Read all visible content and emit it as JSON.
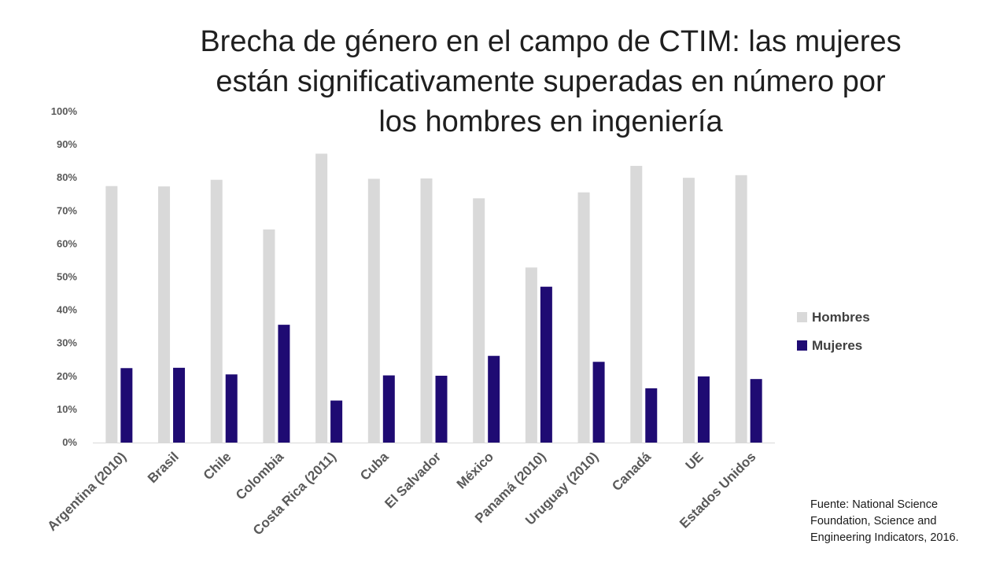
{
  "title_lines": [
    "Brecha de género en el campo de CTIM: las mujeres",
    "están significativamente superadas en número por",
    "los hombres en ingeniería"
  ],
  "source_text": "Fuente: National Science Foundation, Science and Engineering Indicators, 2016.",
  "colors": {
    "Hombres": "#d9d9d9",
    "Mujeres": "#1f0b73"
  },
  "chart_data": {
    "type": "bar",
    "title": "Brecha de género en el campo de CTIM: las mujeres están significativamente superadas en número por los hombres en ingeniería",
    "categories": [
      "Argentina (2010)",
      "Brasil",
      "Chile",
      "Colombia",
      "Costa Rica (2011)",
      "Cuba",
      "El Salvador",
      "México",
      "Panamá (2010)",
      "Uruguay (2010)",
      "Canadá",
      "UE",
      "Estados Unidos"
    ],
    "series": [
      {
        "name": "Hombres",
        "values": [
          77.5,
          77.4,
          79.4,
          64.4,
          87.3,
          79.7,
          79.8,
          73.8,
          52.9,
          75.6,
          83.6,
          80.0,
          80.8
        ]
      },
      {
        "name": "Mujeres",
        "values": [
          22.5,
          22.6,
          20.6,
          35.6,
          12.7,
          20.3,
          20.2,
          26.2,
          47.1,
          24.4,
          16.4,
          20.0,
          19.2
        ]
      }
    ],
    "ylim": [
      0,
      100
    ],
    "yticks": [
      "0%",
      "10%",
      "20%",
      "30%",
      "40%",
      "50%",
      "60%",
      "70%",
      "80%",
      "90%",
      "100%"
    ],
    "xlabel": "",
    "ylabel": "",
    "legend": [
      "Hombres",
      "Mujeres"
    ],
    "legend_position": "right",
    "grid": false
  }
}
